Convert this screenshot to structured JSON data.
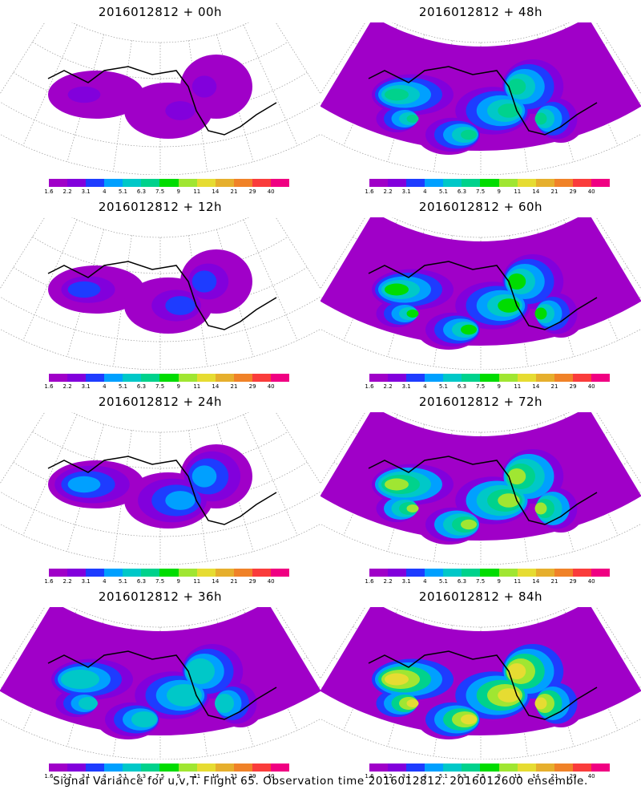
{
  "panels": [
    {
      "title": "2016012812 + 00h"
    },
    {
      "title": "2016012812 + 48h"
    },
    {
      "title": "2016012812 + 12h"
    },
    {
      "title": "2016012812 + 60h"
    },
    {
      "title": "2016012812 + 24h"
    },
    {
      "title": "2016012812 + 72h"
    },
    {
      "title": "2016012812 + 36h"
    },
    {
      "title": "2016012812 + 84h"
    }
  ],
  "colorbar": {
    "colors": [
      "#a000c8",
      "#8200dc",
      "#1e3cff",
      "#00a0ff",
      "#00c8c8",
      "#00d28c",
      "#00dc00",
      "#a0e632",
      "#e6dc32",
      "#e6af2d",
      "#f08228",
      "#fa3c3c",
      "#f00082"
    ],
    "labels": [
      "1.6",
      "2.2",
      "3.1",
      "4",
      "5.1",
      "6.3",
      "7.5",
      "9",
      "11",
      "14",
      "21",
      "29",
      "40"
    ]
  },
  "caption": "Signal Variance for u,v,T. Flight 65. Observation time 2016012812. 2016012600 ensemble."
}
